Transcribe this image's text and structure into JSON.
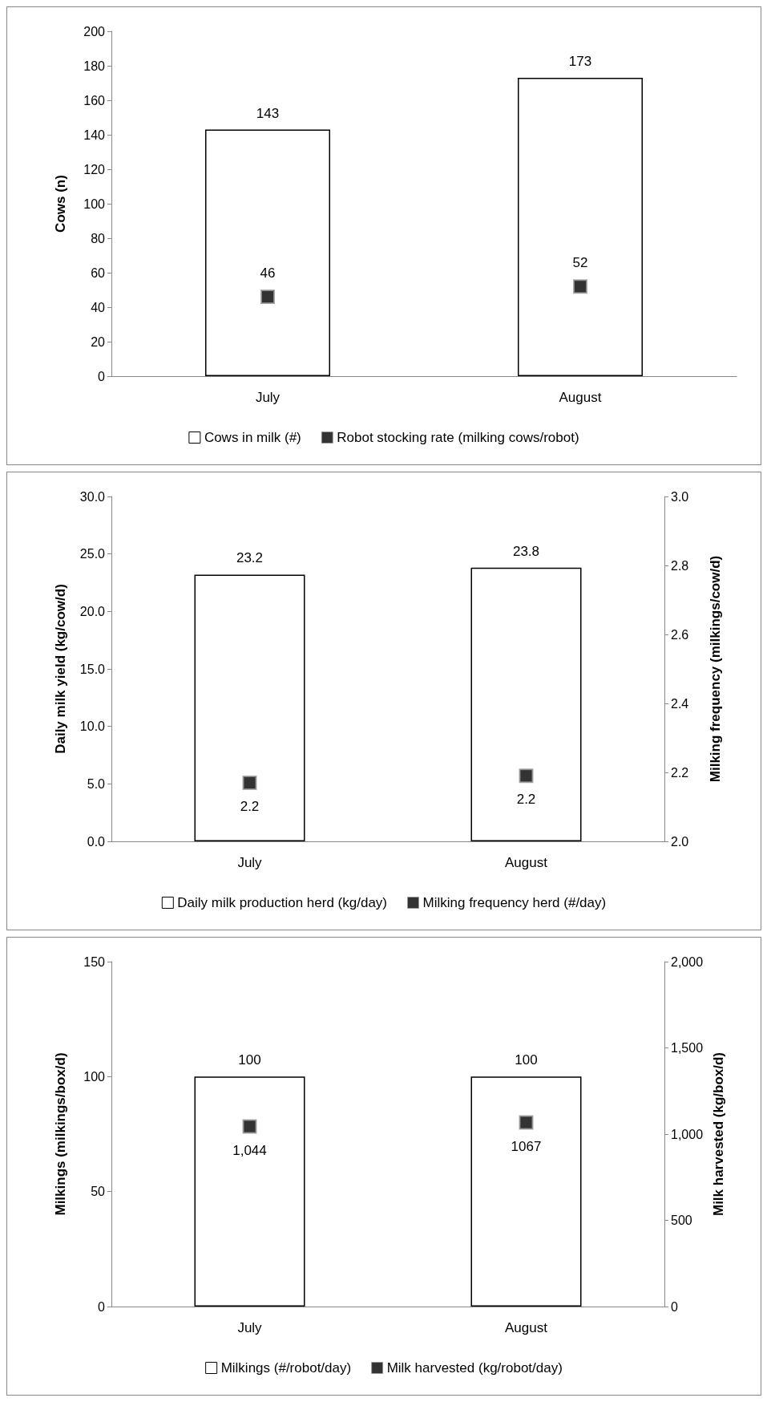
{
  "chart_data": [
    {
      "type": "bar",
      "categories": [
        "July",
        "August"
      ],
      "ylabel": "Cows (n)",
      "ylim": [
        0,
        200
      ],
      "yticks": [
        0,
        20,
        40,
        60,
        80,
        100,
        120,
        140,
        160,
        180,
        200
      ],
      "grid": false,
      "legend": "bottom",
      "marker": "square",
      "data_labels": true,
      "series": [
        {
          "name": "Cows in milk (#)",
          "type": "bar",
          "color": "#ffffff",
          "values": [
            143,
            173
          ]
        },
        {
          "name": "Robot stocking rate (milking cows/robot)",
          "type": "scatter",
          "color": "#000000",
          "values": [
            46,
            52
          ]
        }
      ]
    },
    {
      "type": "bar",
      "categories": [
        "July",
        "August"
      ],
      "ylabel": "Daily milk yield (kg/cow/d)",
      "y2label": "Milking frequency (milkings/cow/d)",
      "ylim": [
        0,
        30
      ],
      "yticks": [
        {
          "value": 0,
          "label": "0.0"
        },
        {
          "value": 5,
          "label": "5.0"
        },
        {
          "value": 10,
          "label": "10.0"
        },
        {
          "value": 15,
          "label": "15.0"
        },
        {
          "value": 20,
          "label": "20.0"
        },
        {
          "value": 25,
          "label": "25.0"
        },
        {
          "value": 30,
          "label": "30.0"
        }
      ],
      "y2lim": [
        2,
        3
      ],
      "y2ticks": [
        {
          "value": 2,
          "label": "2.0"
        },
        2.2,
        2.4,
        2.6,
        2.8,
        {
          "value": 3,
          "label": "3.0"
        }
      ],
      "grid": false,
      "legend": "bottom",
      "marker": "square",
      "series": [
        {
          "name": "Daily milk production herd (kg/day)",
          "type": "bar",
          "color": "#ffffff",
          "values": [
            23.2,
            23.8
          ],
          "value_labels": [
            "23.2",
            "23.8"
          ]
        },
        {
          "name": "Milking frequency herd (#/day)",
          "type": "scatter",
          "color": "#000000",
          "axis": "y2",
          "values": [
            2.17,
            2.19
          ],
          "value_labels": [
            "2.2",
            "2.2"
          ]
        }
      ]
    },
    {
      "type": "bar",
      "categories": [
        "July",
        "August"
      ],
      "ylabel": "Milkings (milkings/box/d)",
      "y2label": "Milk harvested (kg/box/d)",
      "ylim": [
        0,
        150
      ],
      "yticks": [
        0,
        50,
        100,
        150
      ],
      "y2lim": [
        0,
        2000
      ],
      "y2ticks": [
        0,
        500,
        {
          "value": 1000,
          "label": "1,000"
        },
        {
          "value": 1500,
          "label": "1,500"
        },
        {
          "value": 2000,
          "label": "2,000"
        }
      ],
      "grid": false,
      "legend": "bottom",
      "marker": "square",
      "series": [
        {
          "name": "Milkings (#/robot/day)",
          "type": "bar",
          "color": "#ffffff",
          "values": [
            100,
            100
          ],
          "value_labels": [
            "100",
            "100"
          ]
        },
        {
          "name": "Milk harvested (kg/robot/day)",
          "type": "scatter",
          "color": "#000000",
          "axis": "y2",
          "values": [
            1044,
            1067
          ],
          "value_labels": [
            "1,044",
            "1067"
          ]
        }
      ]
    }
  ]
}
